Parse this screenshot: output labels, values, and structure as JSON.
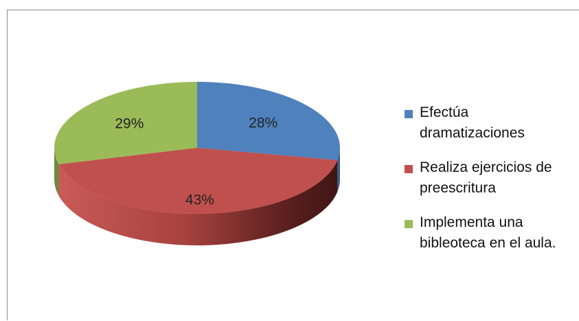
{
  "chart_data": {
    "type": "pie",
    "style": "3d",
    "categories": [
      "Efectúa dramatizaciones",
      "Realiza ejercicios de preescritura",
      "Implementa una bibleoteca en el aula."
    ],
    "values": [
      28,
      43,
      29
    ],
    "value_labels": [
      "28%",
      "43%",
      "29%"
    ],
    "colors": [
      "#4f81bd",
      "#c0504d",
      "#9bbb59"
    ],
    "legend_position": "right"
  },
  "legend": {
    "items": [
      {
        "line1": "Efectúa",
        "line2": "dramatizaciones",
        "color": "#4f81bd"
      },
      {
        "line1": "Realiza ejercicios de",
        "line2": "preescritura",
        "color": "#c0504d"
      },
      {
        "line1": "Implementa una",
        "line2": "bibleoteca en el aula.",
        "color": "#9bbb59"
      }
    ]
  }
}
